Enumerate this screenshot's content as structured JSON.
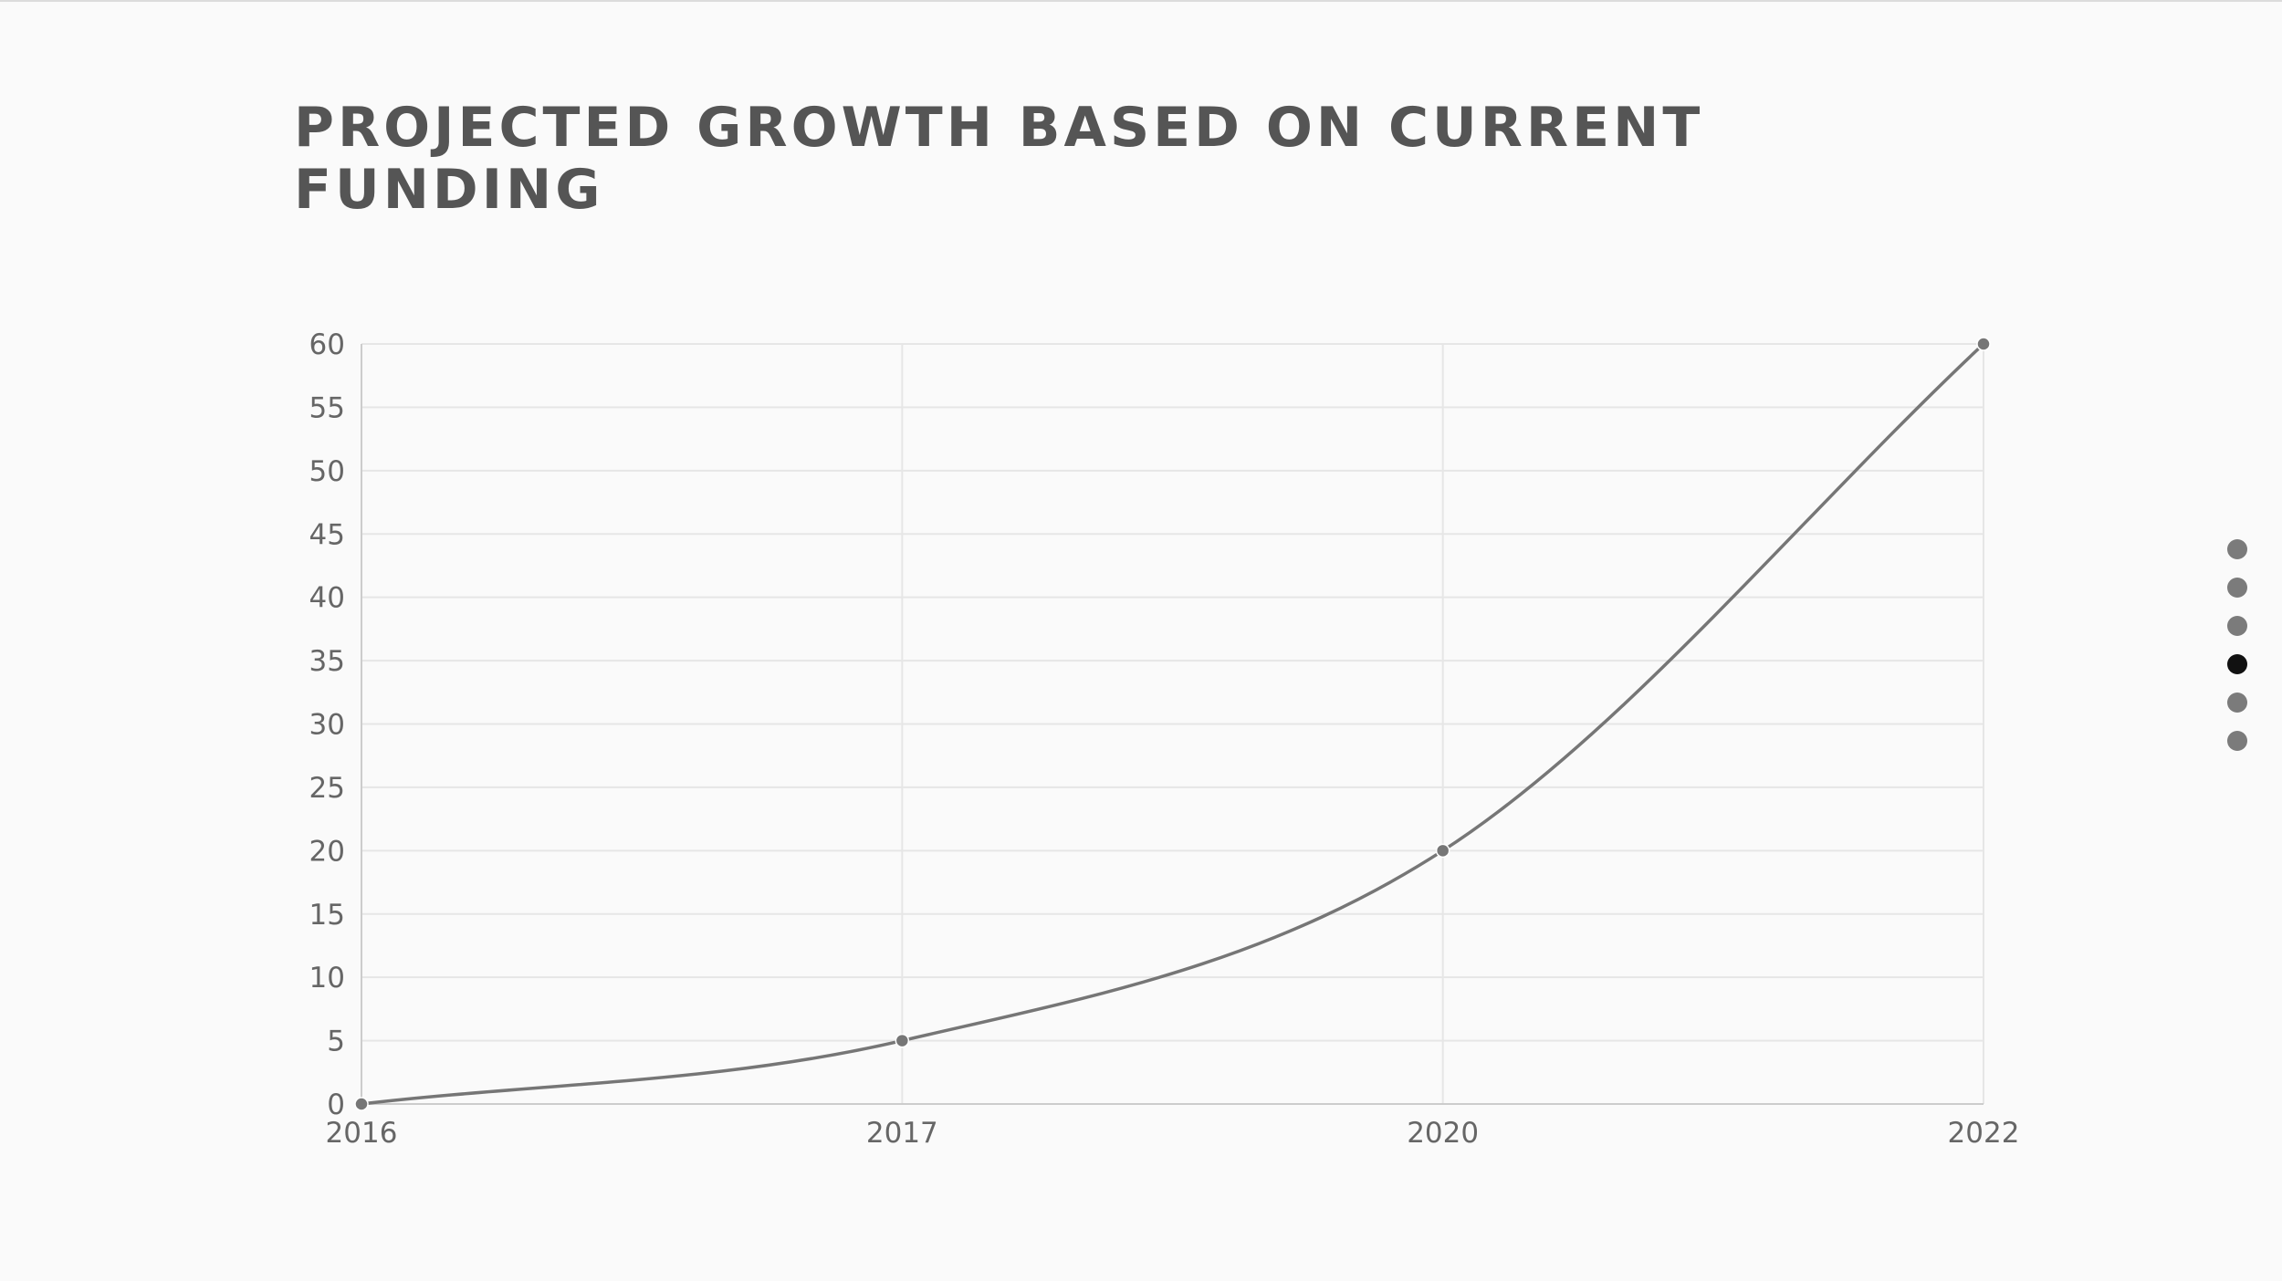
{
  "chart_data": {
    "type": "line",
    "title": "PROJECTED GROWTH BASED ON CURRENT FUNDING",
    "categories": [
      "2016",
      "2017",
      "2020",
      "2022"
    ],
    "series": [
      {
        "values": [
          0,
          5,
          20,
          60
        ]
      }
    ],
    "ylim": [
      0,
      60
    ],
    "yticks": [
      0,
      5,
      10,
      15,
      20,
      25,
      30,
      35,
      40,
      45,
      50,
      55,
      60
    ],
    "grid": true,
    "curve": "smooth",
    "colors": {
      "line": "#767676",
      "grid": "#e6e6e6",
      "axis": "#cccccc"
    }
  },
  "pagination": {
    "count": 6,
    "active_index": 3
  }
}
